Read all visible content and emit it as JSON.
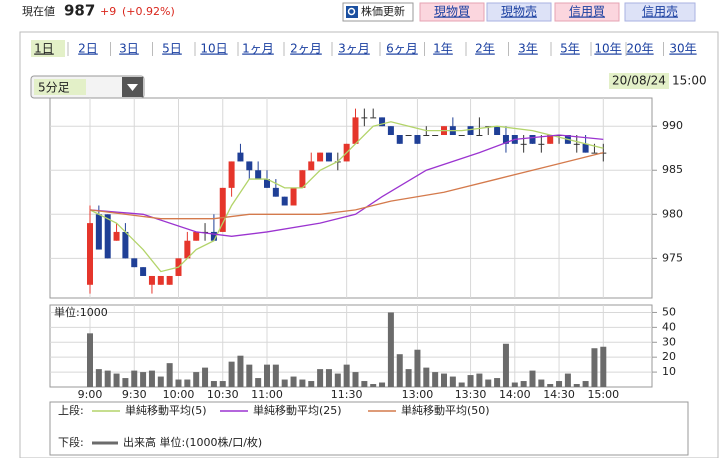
{
  "header": {
    "label": "現在値",
    "price": "987",
    "change": "+9",
    "change_pct": "(+0.92%)"
  },
  "buttons": [
    "株価更新",
    "現物買",
    "現物売",
    "信用買",
    "信用売"
  ],
  "tabs": [
    "1日",
    "2日",
    "3日",
    "5日",
    "10日",
    "1ヶ月",
    "2ヶ月",
    "3ヶ月",
    "6ヶ月",
    "1年",
    "2年",
    "3年",
    "5年",
    "10年",
    "20年",
    "30年"
  ],
  "selected_tab": 0,
  "interval": "5分足",
  "date": "20/08/24",
  "time": "15:00",
  "chart_data": [
    {
      "type": "candlestick",
      "legend_label": "上段:",
      "up_color": "#e5352b",
      "down_color": "#1f3f96",
      "ylim": [
        970.5,
        993.2
      ],
      "yticks": [
        975,
        980,
        985,
        990
      ],
      "grid": true,
      "open": [
        972,
        980,
        980,
        977,
        978,
        975,
        974,
        972,
        972,
        972,
        973,
        975,
        977,
        978,
        978,
        978,
        983,
        987,
        986,
        985,
        984,
        983,
        982,
        981,
        983,
        985,
        986,
        987,
        986,
        986,
        988,
        991,
        991,
        991,
        990,
        989,
        989,
        989,
        989,
        989,
        989,
        990,
        989,
        990,
        989,
        990,
        990,
        989,
        989,
        988,
        989,
        988,
        988,
        989,
        989,
        988,
        988,
        987,
        987
      ],
      "high": [
        981,
        981,
        980,
        979,
        979,
        975,
        974,
        973,
        973,
        973,
        975,
        978,
        978,
        979,
        980,
        983,
        986,
        988,
        986,
        986,
        985,
        984,
        982,
        983,
        985,
        987,
        987,
        987,
        987,
        988,
        992,
        992,
        992,
        991,
        990,
        989,
        989,
        989,
        990,
        989,
        990,
        991,
        989,
        990,
        991,
        990,
        990,
        990,
        989,
        989,
        989,
        989,
        989,
        989,
        989,
        989,
        989,
        988,
        988
      ],
      "low": [
        971,
        976,
        975,
        977,
        975,
        974,
        973,
        971,
        972,
        972,
        973,
        975,
        977,
        977,
        977,
        978,
        982,
        986,
        984,
        984,
        983,
        982,
        981,
        981,
        983,
        985,
        986,
        986,
        985,
        986,
        988,
        990,
        991,
        990,
        989,
        988,
        989,
        988,
        989,
        989,
        989,
        989,
        989,
        989,
        989,
        989,
        989,
        987,
        988,
        987,
        988,
        987,
        988,
        988,
        988,
        987,
        987,
        987,
        986
      ],
      "close": [
        979,
        976,
        975,
        978,
        975,
        974,
        973,
        973,
        973,
        973,
        975,
        977,
        978,
        978,
        977,
        983,
        986,
        986,
        985,
        984,
        983,
        982,
        981,
        983,
        985,
        986,
        987,
        986,
        986,
        988,
        991,
        991,
        991,
        990,
        989,
        988,
        989,
        988,
        989,
        989,
        990,
        989,
        989,
        989,
        989,
        990,
        989,
        988,
        988,
        988,
        988,
        988,
        989,
        989,
        988,
        988,
        987,
        987,
        987
      ],
      "series": [
        {
          "name": "単純移動平均(5)",
          "color": "#b3d46a",
          "x": [
            0,
            3,
            6,
            8,
            10,
            12,
            14,
            16,
            18,
            20,
            22,
            24,
            26,
            28,
            30,
            32,
            34,
            38,
            42,
            46,
            50,
            54,
            58
          ],
          "values": [
            980.5,
            979,
            976,
            973.5,
            974,
            976,
            977,
            981,
            984,
            984,
            983,
            983,
            985,
            986,
            988,
            990,
            990.5,
            989.5,
            989.5,
            990,
            989.5,
            988.5,
            987.5
          ]
        },
        {
          "name": "単純移動平均(25)",
          "color": "#9b34d0",
          "x": [
            0,
            6,
            12,
            16,
            20,
            26,
            30,
            33,
            38,
            44,
            48,
            53,
            58
          ],
          "values": [
            980.5,
            980,
            978,
            977.5,
            978,
            979,
            980,
            982,
            985,
            987,
            988.5,
            989,
            988.5
          ]
        },
        {
          "name": "単純移動平均(50)",
          "color": "#d47a4c",
          "x": [
            0,
            8,
            14,
            18,
            26,
            30,
            34,
            40,
            46,
            52,
            58
          ],
          "values": [
            980.5,
            979.5,
            979.5,
            980,
            980,
            980.5,
            981.5,
            982.5,
            984,
            985.5,
            987
          ]
        }
      ]
    },
    {
      "type": "bar",
      "legend_label": "下段:",
      "unit_label": "単位:1000",
      "ylim": [
        0,
        55
      ],
      "yticks": [
        10,
        20,
        30,
        40,
        50
      ],
      "grid": true,
      "categories": [
        "9:00",
        null,
        null,
        null,
        null,
        "9:30",
        null,
        null,
        null,
        null,
        "10:00",
        null,
        null,
        null,
        null,
        "10:30",
        null,
        null,
        null,
        null,
        "11:00",
        null,
        null,
        null,
        null,
        null,
        null,
        null,
        null,
        "11:30",
        null,
        null,
        null,
        null,
        null,
        null,
        null,
        "13:00",
        null,
        null,
        null,
        null,
        null,
        "13:30",
        null,
        null,
        null,
        null,
        "14:00",
        null,
        null,
        null,
        null,
        "14:30",
        null,
        null,
        null,
        null,
        "15:00"
      ],
      "series": [
        {
          "name": "出来高 単位:(1000株/口/枚)",
          "color": "#6b6b6b",
          "values": [
            36,
            12,
            11,
            9,
            6,
            11,
            10,
            11,
            7,
            16,
            5,
            5,
            10,
            13,
            4,
            4,
            17,
            21,
            15,
            6,
            15,
            15,
            5,
            7,
            5,
            4,
            12,
            12,
            9,
            15,
            10,
            4,
            2,
            3,
            50,
            22,
            12,
            25,
            13,
            10,
            9,
            7,
            3,
            8,
            9,
            5,
            6,
            29,
            3,
            4,
            11,
            5,
            2,
            4,
            9,
            2,
            4,
            26,
            27
          ]
        }
      ]
    }
  ]
}
